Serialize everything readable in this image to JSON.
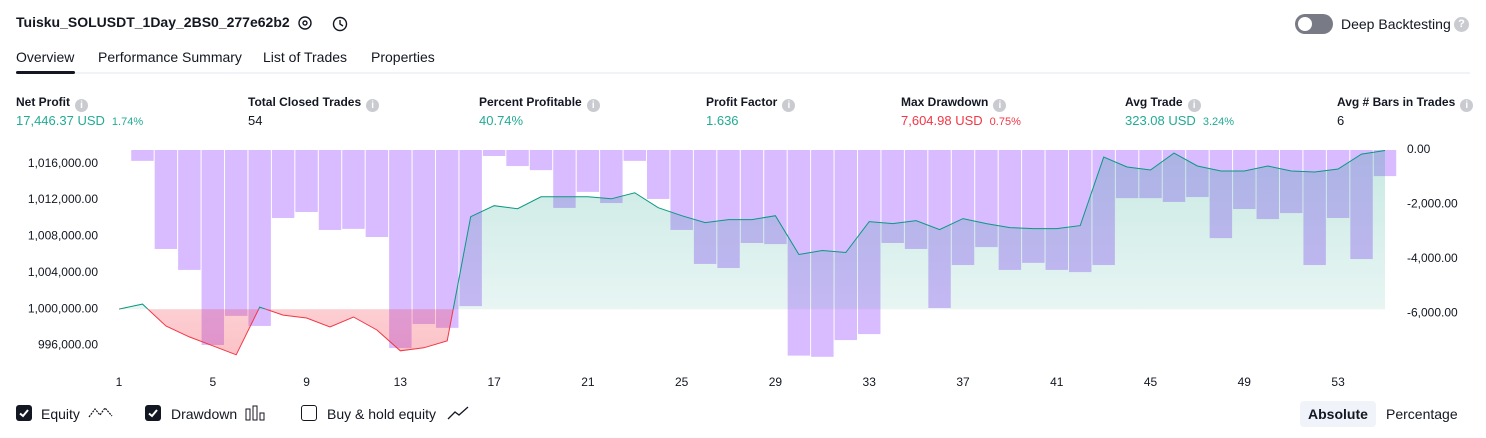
{
  "header": {
    "title": "Tuisku_SOLUSDT_1Day_2BS0_277e62b2",
    "toggle_label": "Deep Backtesting",
    "toggle_on": false
  },
  "tabs": [
    "Overview",
    "Performance Summary",
    "List of Trades",
    "Properties"
  ],
  "active_tab": 0,
  "metrics": [
    {
      "label": "Net Profit",
      "value": "17,446.37 USD",
      "percent": "1.74%",
      "color": "#22ab94"
    },
    {
      "label": "Total Closed Trades",
      "value": "54",
      "color": "#131722"
    },
    {
      "label": "Percent Profitable",
      "value": "40.74%",
      "color": "#22ab94"
    },
    {
      "label": "Profit Factor",
      "value": "1.636",
      "color": "#22ab94"
    },
    {
      "label": "Max Drawdown",
      "value": "7,604.98 USD",
      "percent": "0.75%",
      "color": "#f23645"
    },
    {
      "label": "Avg Trade",
      "value": "323.08 USD",
      "percent": "3.24%",
      "color": "#22ab94"
    },
    {
      "label": "Avg # Bars in Trades",
      "value": "6",
      "color": "#131722"
    }
  ],
  "chart_data": {
    "type": "line",
    "x": [
      1,
      2,
      3,
      4,
      5,
      6,
      7,
      8,
      9,
      10,
      11,
      12,
      13,
      14,
      15,
      16,
      17,
      18,
      19,
      20,
      21,
      22,
      23,
      24,
      25,
      26,
      27,
      28,
      29,
      30,
      31,
      32,
      33,
      34,
      35,
      36,
      37,
      38,
      39,
      40,
      41,
      42,
      43,
      44,
      45,
      46,
      47,
      48,
      49,
      50,
      51,
      52,
      53,
      54,
      55
    ],
    "xlim": [
      0.53,
      55.47
    ],
    "xticks": [
      1,
      5,
      9,
      13,
      17,
      21,
      25,
      29,
      33,
      37,
      41,
      45,
      49,
      53
    ],
    "ylim": [
      993300,
      1017500
    ],
    "yticks": [
      {
        "value": 996000,
        "label": "996,000.00"
      },
      {
        "value": 1000000,
        "label": "1,000,000.00"
      },
      {
        "value": 1004000,
        "label": "1,004,000.00"
      },
      {
        "value": 1008000,
        "label": "1,008,000.00"
      },
      {
        "value": 1012000,
        "label": "1,012,000.00"
      },
      {
        "value": 1016000,
        "label": "1,016,000.00"
      }
    ],
    "y2lim": [
      -8090,
      0
    ],
    "y2ticks": [
      {
        "value": -6000,
        "label": "-6,000.00"
      },
      {
        "value": -4000,
        "label": "-4,000.00"
      },
      {
        "value": -2000,
        "label": "-2,000.00"
      },
      {
        "value": 0,
        "label": "0.00"
      }
    ],
    "grid": false,
    "series": [
      {
        "name": "Equity",
        "type": "area",
        "color": "#089981",
        "negative_color": "#f23645",
        "checked": true,
        "axis": "y",
        "values": [
          1000000,
          1000550,
          998140,
          996940,
          995960,
          994970,
          1000220,
          999340,
          999020,
          998030,
          999130,
          997700,
          995410,
          995740,
          996500,
          1010160,
          1011370,
          1011040,
          1012350,
          1012350,
          1012350,
          1012130,
          1012790,
          1011150,
          1010270,
          1009510,
          1009840,
          1009840,
          1010270,
          1006010,
          1006450,
          1006230,
          1009620,
          1009400,
          1009730,
          1008740,
          1009950,
          1009400,
          1008960,
          1008850,
          1008850,
          1009180,
          1016720,
          1015630,
          1015300,
          1017160,
          1015740,
          1015190,
          1015190,
          1015740,
          1015190,
          1015080,
          1015410,
          1017050,
          1017446
        ]
      },
      {
        "name": "Drawdown",
        "type": "bar",
        "color": "rgba(186,132,255,0.55)",
        "checked": true,
        "axis": "y2",
        "values": [
          0,
          -400,
          -3640,
          -4410,
          -7170,
          -6100,
          -6470,
          -2500,
          -2280,
          -2940,
          -2900,
          -3200,
          -7280,
          -6400,
          -6540,
          -5740,
          -220,
          -590,
          -740,
          -2130,
          -1540,
          -1950,
          -400,
          -1800,
          -2940,
          -4190,
          -4340,
          -3420,
          -3460,
          -7560,
          -7605,
          -6990,
          -6770,
          -3420,
          -3640,
          -5810,
          -4230,
          -3570,
          -4410,
          -4150,
          -4410,
          -4490,
          -4230,
          -1770,
          -1770,
          -1910,
          -1730,
          -3240,
          -2170,
          -2540,
          -2320,
          -4230,
          -2500,
          -4010,
          -960
        ]
      }
    ]
  },
  "extra_legend": {
    "label": "Buy & hold equity",
    "checked": false
  },
  "view_buttons": [
    "Absolute",
    "Percentage"
  ],
  "active_view": 0
}
